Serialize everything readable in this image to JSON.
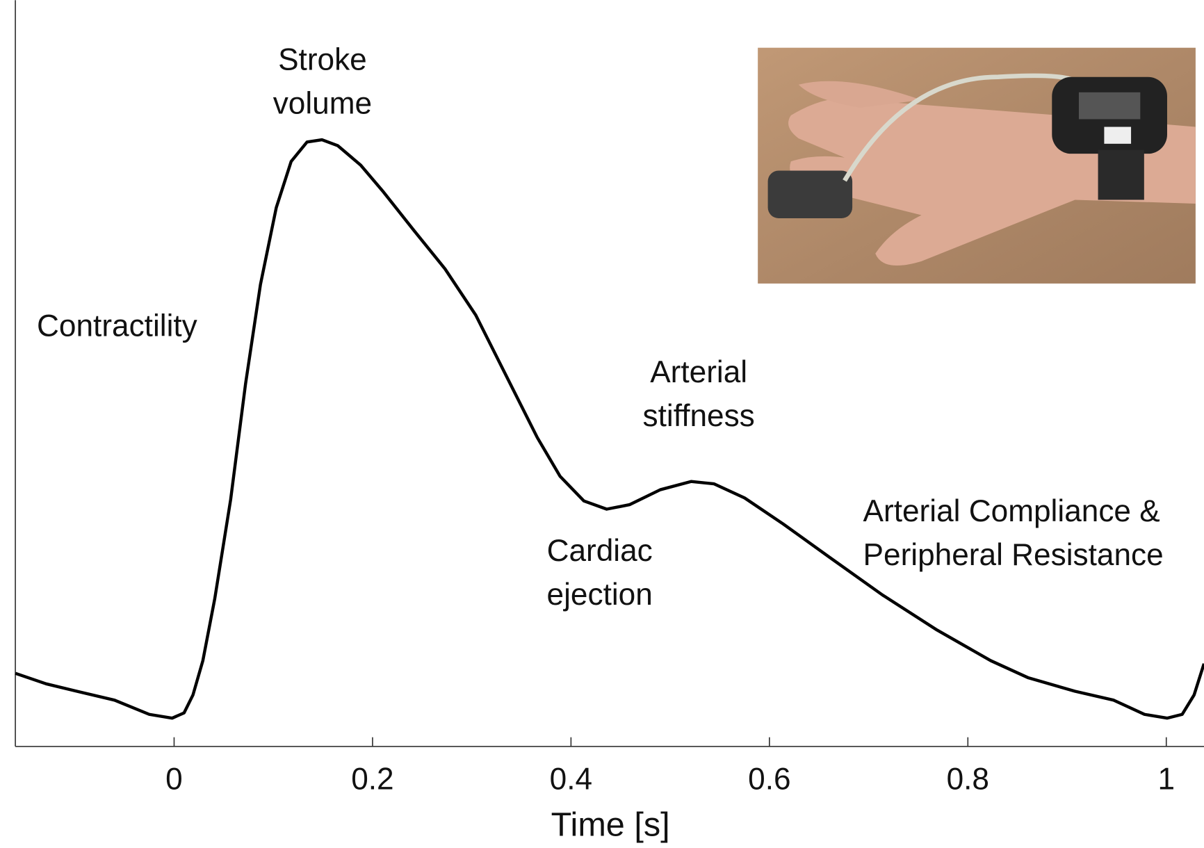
{
  "chart_data": {
    "type": "line",
    "x_label": "Time [s]",
    "xlim": [
      -0.16,
      1.038
    ],
    "ylim": [
      0,
      1
    ],
    "xticks": [
      0,
      0.2,
      0.4,
      0.6,
      0.8,
      1
    ],
    "series": [
      {
        "color": "#000000",
        "x": [
          -0.16,
          -0.129,
          -0.098,
          -0.06,
          -0.025,
          -0.002,
          0.01,
          0.019,
          0.029,
          0.041,
          0.057,
          0.072,
          0.087,
          0.103,
          0.118,
          0.134,
          0.149,
          0.165,
          0.188,
          0.211,
          0.242,
          0.273,
          0.304,
          0.335,
          0.366,
          0.389,
          0.413,
          0.436,
          0.459,
          0.49,
          0.521,
          0.544,
          0.575,
          0.614,
          0.66,
          0.714,
          0.769,
          0.823,
          0.861,
          0.908,
          0.947,
          0.978,
          1.001,
          1.016,
          1.028,
          1.038
        ],
        "values": [
          0.098,
          0.084,
          0.074,
          0.062,
          0.043,
          0.038,
          0.045,
          0.069,
          0.115,
          0.198,
          0.331,
          0.486,
          0.619,
          0.722,
          0.784,
          0.81,
          0.813,
          0.805,
          0.779,
          0.743,
          0.691,
          0.64,
          0.578,
          0.496,
          0.414,
          0.362,
          0.329,
          0.318,
          0.324,
          0.344,
          0.355,
          0.352,
          0.333,
          0.298,
          0.254,
          0.203,
          0.156,
          0.115,
          0.092,
          0.074,
          0.062,
          0.043,
          0.038,
          0.043,
          0.069,
          0.111
        ]
      }
    ],
    "annotations": [
      {
        "lines": [
          "Stroke",
          "volume"
        ]
      },
      {
        "lines": [
          "Contractility"
        ]
      },
      {
        "lines": [
          "Arterial",
          "stiffness"
        ]
      },
      {
        "lines": [
          "Cardiac",
          "ejection"
        ]
      },
      {
        "lines": [
          "Arterial Compliance &",
          "Peripheral Resistance"
        ]
      }
    ]
  }
}
